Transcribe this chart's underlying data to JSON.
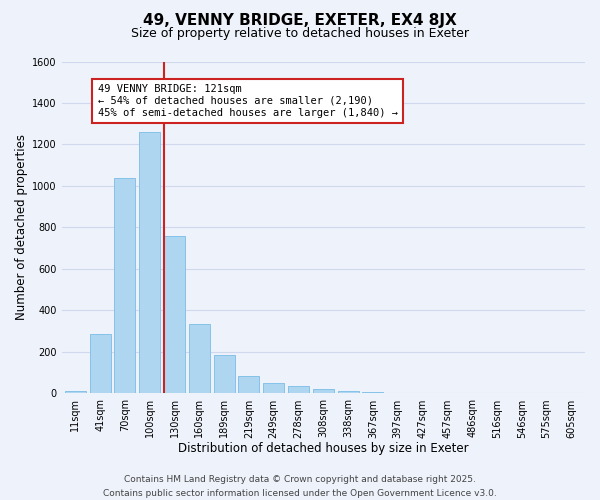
{
  "title": "49, VENNY BRIDGE, EXETER, EX4 8JX",
  "subtitle": "Size of property relative to detached houses in Exeter",
  "xlabel": "Distribution of detached houses by size in Exeter",
  "ylabel": "Number of detached properties",
  "bar_labels": [
    "11sqm",
    "41sqm",
    "70sqm",
    "100sqm",
    "130sqm",
    "160sqm",
    "189sqm",
    "219sqm",
    "249sqm",
    "278sqm",
    "308sqm",
    "338sqm",
    "367sqm",
    "397sqm",
    "427sqm",
    "457sqm",
    "486sqm",
    "516sqm",
    "546sqm",
    "575sqm",
    "605sqm"
  ],
  "bar_values": [
    10,
    285,
    1040,
    1260,
    760,
    335,
    185,
    82,
    52,
    38,
    22,
    10,
    5,
    2,
    1,
    0,
    0,
    0,
    0,
    0,
    0
  ],
  "bar_color": "#aed6f1",
  "bar_edge_color": "#85c1e9",
  "vline_color": "#cc2222",
  "annotation_line1": "49 VENNY BRIDGE: 121sqm",
  "annotation_line2": "← 54% of detached houses are smaller (2,190)",
  "annotation_line3": "45% of semi-detached houses are larger (1,840) →",
  "annotation_box_color": "#ffffff",
  "annotation_box_edge_color": "#cc2222",
  "ylim": [
    0,
    1600
  ],
  "yticks": [
    0,
    200,
    400,
    600,
    800,
    1000,
    1200,
    1400,
    1600
  ],
  "footer_line1": "Contains HM Land Registry data © Crown copyright and database right 2025.",
  "footer_line2": "Contains public sector information licensed under the Open Government Licence v3.0.",
  "background_color": "#eef2fb",
  "grid_color": "#d0d8ee",
  "title_fontsize": 11,
  "subtitle_fontsize": 9,
  "axis_label_fontsize": 8.5,
  "tick_fontsize": 7,
  "annotation_fontsize": 7.5,
  "footer_fontsize": 6.5
}
